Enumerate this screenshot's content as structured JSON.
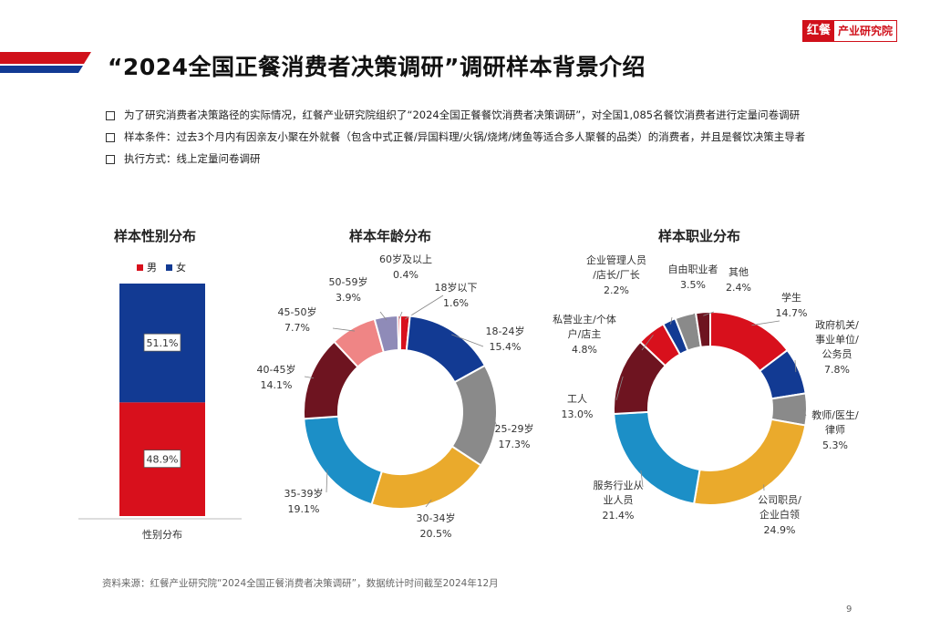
{
  "header": {
    "title": "“2024全国正餐消费者决策调研”调研样本背景介绍",
    "logo_mark": "红餐",
    "logo_text": "产业研究院"
  },
  "bullets": [
    "为了研究消费者决策路径的实际情况，红餐产业研究院组织了“2024全国正餐餐饮消费者决策调研”，对全国1,085名餐饮消费者进行定量问卷调研",
    "样本条件：过去3个月内有因亲友小聚在外就餐（包含中式正餐/异国料理/火锅/烧烤/烤鱼等适合多人聚餐的品类）的消费者，并且是餐饮决策主导者",
    "执行方式：线上定量问卷调研"
  ],
  "colors": {
    "accent": "#d0101a",
    "male": "#d8101c",
    "female": "#123a93"
  },
  "chart_data": [
    {
      "type": "bar",
      "title": "样本性别分布",
      "categories": [
        "性别分布"
      ],
      "series": [
        {
          "name": "男",
          "values": [
            48.9
          ],
          "label": "48.9%",
          "color": "#d8101c"
        },
        {
          "name": "女",
          "values": [
            51.1
          ],
          "label": "51.1%",
          "color": "#123a93"
        }
      ],
      "stacked": true,
      "ylim": [
        0,
        100
      ],
      "legend": "top"
    },
    {
      "type": "pie",
      "title": "样本年龄分布",
      "donut": true,
      "slices": [
        {
          "label": "18岁以下",
          "value": 1.6,
          "text": "1.6%",
          "color": "#d8101c"
        },
        {
          "label": "18-24岁",
          "value": 15.4,
          "text": "15.4%",
          "color": "#123a93"
        },
        {
          "label": "25-29岁",
          "value": 17.3,
          "text": "17.3%",
          "color": "#8a8a8a"
        },
        {
          "label": "30-34岁",
          "value": 20.5,
          "text": "20.5%",
          "color": "#eaaa2c"
        },
        {
          "label": "35-39岁",
          "value": 19.1,
          "text": "19.1%",
          "color": "#1c8fc7"
        },
        {
          "label": "40-45岁",
          "value": 14.1,
          "text": "14.1%",
          "color": "#6e1420"
        },
        {
          "label": "45-50岁",
          "value": 7.7,
          "text": "7.7%",
          "color": "#ef8585"
        },
        {
          "label": "50-59岁",
          "value": 3.9,
          "text": "3.9%",
          "color": "#8f8bb8"
        },
        {
          "label": "60岁及以上",
          "value": 0.4,
          "text": "0.4%",
          "color": "#e23a44"
        }
      ]
    },
    {
      "type": "pie",
      "title": "样本职业分布",
      "donut": true,
      "slices": [
        {
          "label": "学生",
          "value": 14.7,
          "text": "14.7%",
          "color": "#d8101c"
        },
        {
          "label": "政府机关/事业单位/公务员",
          "value": 7.8,
          "text": "7.8%",
          "color": "#123a93"
        },
        {
          "label": "教师/医生/律师",
          "value": 5.3,
          "text": "5.3%",
          "color": "#8a8a8a"
        },
        {
          "label": "公司职员/企业白领",
          "value": 24.9,
          "text": "24.9%",
          "color": "#eaaa2c"
        },
        {
          "label": "服务行业从业人员",
          "value": 21.4,
          "text": "21.4%",
          "color": "#1c8fc7"
        },
        {
          "label": "工人",
          "value": 13.0,
          "text": "13.0%",
          "color": "#6e1420"
        },
        {
          "label": "私营业主/个体户/店主",
          "value": 4.8,
          "text": "4.8%",
          "color": "#d8101c"
        },
        {
          "label": "企业管理人员/店长/厂长",
          "value": 2.2,
          "text": "2.2%",
          "color": "#123a93"
        },
        {
          "label": "自由职业者",
          "value": 3.5,
          "text": "3.5%",
          "color": "#8a8a8a"
        },
        {
          "label": "其他",
          "value": 2.4,
          "text": "2.4%",
          "color": "#6e1420"
        }
      ]
    }
  ],
  "source": "资料来源：红餐产业研究院“2024全国正餐消费者决策调研”，数据统计时间截至2024年12月",
  "page_number": "9"
}
